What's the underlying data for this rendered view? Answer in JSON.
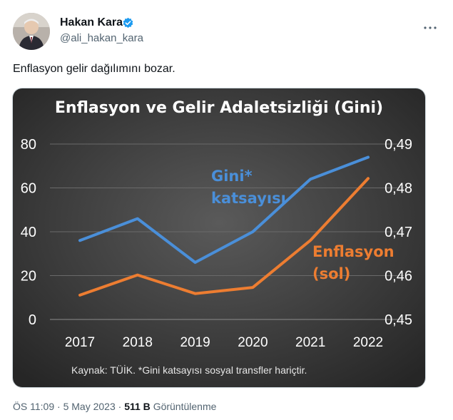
{
  "tweet": {
    "author_name": "Hakan Kara",
    "handle": "@ali_hakan_kara",
    "text": "Enflasyon gelir dağılımını bozar.",
    "more_icon": "ellipsis-icon",
    "verified_icon": "verified-badge-icon",
    "time": "ÖS 11:09",
    "date": "5 May 2023",
    "separator": "·",
    "views": "511 B",
    "views_label": "Görüntülenme"
  },
  "chart_data": {
    "type": "line",
    "title": "Enflasyon ve Gelir Adaletsizliği (Gini)",
    "categories": [
      "2017",
      "2018",
      "2019",
      "2020",
      "2021",
      "2022"
    ],
    "y_left": {
      "ticks": [
        "0",
        "20",
        "40",
        "60",
        "80"
      ],
      "range": [
        0,
        80
      ]
    },
    "y_right": {
      "ticks": [
        "0,45",
        "0,46",
        "0,47",
        "0,48",
        "0,49"
      ],
      "range": [
        0.45,
        0.49
      ]
    },
    "series": [
      {
        "name": "Gini* katsayısı",
        "label_lines": [
          "Gini*",
          "katsayısı"
        ],
        "axis": "right",
        "color": "#4a8fd9",
        "values": [
          0.468,
          0.473,
          0.463,
          0.47,
          0.482,
          0.487
        ]
      },
      {
        "name": "Enflasyon (sol)",
        "label_lines": [
          "Enflasyon",
          "(sol)"
        ],
        "axis": "left",
        "color": "#ed7d31",
        "values": [
          11.1,
          20.3,
          11.8,
          14.6,
          36.1,
          64.3
        ]
      }
    ],
    "note": "Kaynak: TÜİK. *Gini katsayısı sosyal transfler hariçtir.",
    "grid": true,
    "background": "#2b2b2b"
  }
}
